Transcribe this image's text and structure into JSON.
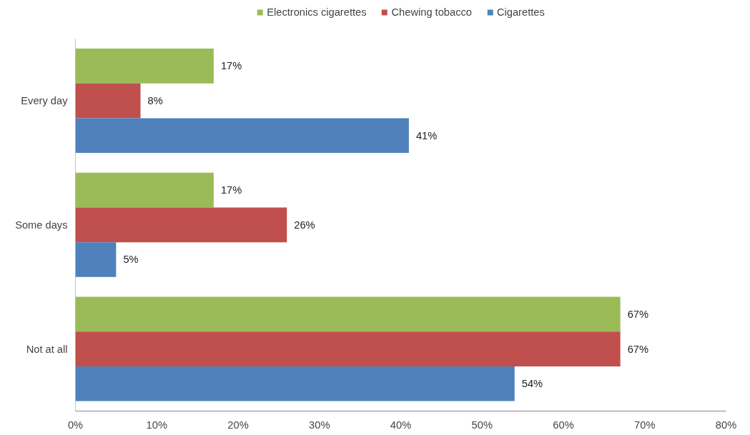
{
  "chart_data": {
    "type": "bar",
    "orientation": "horizontal",
    "categories": [
      "Every day",
      "Some days",
      "Not at all"
    ],
    "series": [
      {
        "name": "Electronics cigarettes",
        "color": "#9bbb59",
        "values": [
          17,
          17,
          67
        ],
        "value_labels": [
          "17%",
          "17%",
          "67%"
        ]
      },
      {
        "name": "Chewing tobacco",
        "color": "#c0504d",
        "values": [
          8,
          26,
          67
        ],
        "value_labels": [
          "8%",
          "26%",
          "67%"
        ]
      },
      {
        "name": "Cigarettes",
        "color": "#4f81bd",
        "values": [
          41,
          5,
          54
        ],
        "value_labels": [
          "41%",
          "5%",
          "54%"
        ]
      }
    ],
    "xlim": [
      0,
      80
    ],
    "xticks": [
      {
        "value": 0,
        "label": "0%"
      },
      {
        "value": 10,
        "label": "10%"
      },
      {
        "value": 20,
        "label": "20%"
      },
      {
        "value": 30,
        "label": "30%"
      },
      {
        "value": 40,
        "label": "40%"
      },
      {
        "value": 50,
        "label": "50%"
      },
      {
        "value": 60,
        "label": "60%"
      },
      {
        "value": 70,
        "label": "70%"
      },
      {
        "value": 80,
        "label": "80%"
      }
    ],
    "grid": false,
    "legend": "top"
  }
}
